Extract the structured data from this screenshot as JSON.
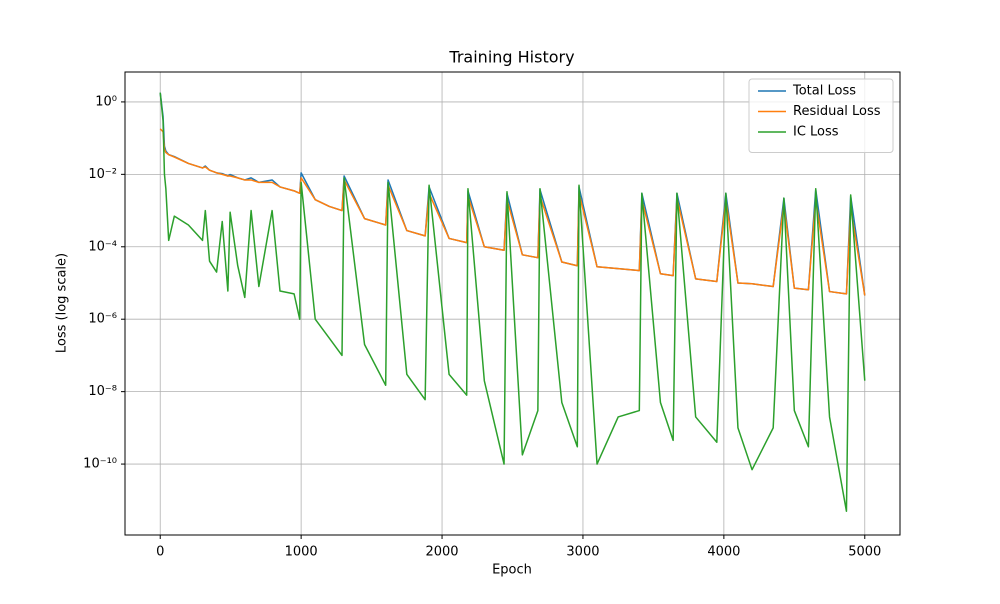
{
  "chart_data": {
    "type": "line",
    "title": "Training History",
    "x_label": "Epoch",
    "y_label": "Loss (log scale)",
    "log_y": true,
    "grid": true,
    "legend": "upper right",
    "x": [
      0,
      20,
      30,
      40,
      60,
      100,
      200,
      300,
      320,
      350,
      400,
      440,
      480,
      496,
      550,
      600,
      645,
      700,
      794,
      850,
      950,
      990,
      1000,
      1100,
      1200,
      1290,
      1305,
      1450,
      1600,
      1617,
      1750,
      1880,
      1908,
      2050,
      2175,
      2184,
      2300,
      2440,
      2461,
      2570,
      2680,
      2695,
      2850,
      2960,
      2972,
      3100,
      3250,
      3400,
      3418,
      3550,
      3640,
      3667,
      3800,
      3950,
      4014,
      4100,
      4200,
      4350,
      4426,
      4500,
      4600,
      4652,
      4750,
      4870,
      4900,
      5000
    ],
    "series": [
      {
        "name": "Total Loss",
        "color": "#1f77b4",
        "values": [
          1.8,
          0.4,
          0.06,
          0.044,
          0.035,
          0.031,
          0.02,
          0.015,
          0.017,
          0.013,
          0.011,
          0.0105,
          0.009,
          0.0099,
          0.008,
          0.007,
          0.008,
          0.006,
          0.007,
          0.0045,
          0.0035,
          0.003,
          0.011,
          0.002,
          0.0013,
          0.001,
          0.009,
          0.0006,
          0.0004,
          0.007,
          0.00028,
          0.0002,
          0.0045,
          0.00017,
          0.00013,
          0.0035,
          0.0001,
          8e-05,
          0.003,
          6e-05,
          5e-05,
          0.0038,
          3.8e-05,
          3e-05,
          0.0045,
          2.8e-05,
          2.5e-05,
          2.2e-05,
          0.003,
          1.8e-05,
          1.6e-05,
          0.003,
          1.3e-05,
          1.1e-05,
          0.003,
          1e-05,
          9.5e-06,
          8e-06,
          0.0022,
          7.2e-06,
          6.5e-06,
          0.0038,
          5.8e-06,
          5e-06,
          0.0025,
          4.5e-06
        ]
      },
      {
        "name": "Residual Loss",
        "color": "#ff7f0e",
        "values": [
          0.18,
          0.15,
          0.05,
          0.04,
          0.035,
          0.03,
          0.02,
          0.015,
          0.016,
          0.013,
          0.011,
          0.01,
          0.009,
          0.009,
          0.008,
          0.007,
          0.007,
          0.006,
          0.006,
          0.0045,
          0.0035,
          0.003,
          0.008,
          0.002,
          0.0013,
          0.001,
          0.007,
          0.0006,
          0.0004,
          0.005,
          0.00028,
          0.0002,
          0.003,
          0.00017,
          0.00013,
          0.0025,
          0.0001,
          8e-05,
          0.002,
          6e-05,
          5e-05,
          0.0025,
          3.8e-05,
          3e-05,
          0.003,
          2.8e-05,
          2.5e-05,
          2.2e-05,
          0.002,
          1.8e-05,
          1.6e-05,
          0.0022,
          1.3e-05,
          1.1e-05,
          0.002,
          1e-05,
          9.5e-06,
          8e-06,
          0.0015,
          7.2e-06,
          6.5e-06,
          0.002,
          5.8e-06,
          5e-06,
          0.0012,
          4.5e-06
        ]
      },
      {
        "name": "IC Loss",
        "color": "#2ca02c",
        "values": [
          1.8,
          0.3,
          0.01,
          0.004,
          0.00015,
          0.0007,
          0.0004,
          0.00015,
          0.001,
          4e-05,
          2e-05,
          0.0005,
          6e-06,
          0.0009,
          3e-05,
          4e-06,
          0.001,
          8e-06,
          0.001,
          6e-06,
          5e-06,
          1e-06,
          0.006,
          1e-06,
          3e-07,
          1e-07,
          0.008,
          2e-07,
          1.5e-08,
          0.006,
          3e-08,
          6e-09,
          0.005,
          3e-08,
          8e-09,
          0.004,
          2e-08,
          1e-10,
          0.0033,
          1.8e-10,
          3e-09,
          0.004,
          5e-09,
          3e-10,
          0.005,
          1e-10,
          2e-09,
          3e-09,
          0.003,
          5e-09,
          4.5e-10,
          0.003,
          2e-09,
          4e-10,
          0.003,
          1e-09,
          7e-11,
          1e-09,
          0.0022,
          3e-09,
          3e-10,
          0.004,
          2e-09,
          5e-12,
          0.0027,
          2e-08
        ]
      }
    ],
    "xlim": [
      -250,
      5250
    ],
    "xticks": [
      0,
      1000,
      2000,
      3000,
      4000,
      5000
    ],
    "ylim": [
      6.7,
      1.1e-12
    ],
    "yticks": [
      {
        "value": 1,
        "label": "10⁰"
      },
      {
        "value": 0.01,
        "label": "10⁻²"
      },
      {
        "value": 0.0001,
        "label": "10⁻⁴"
      },
      {
        "value": 1e-06,
        "label": "10⁻⁶"
      },
      {
        "value": 1e-08,
        "label": "10⁻⁸"
      },
      {
        "value": 1e-10,
        "label": "10⁻¹⁰"
      }
    ]
  }
}
